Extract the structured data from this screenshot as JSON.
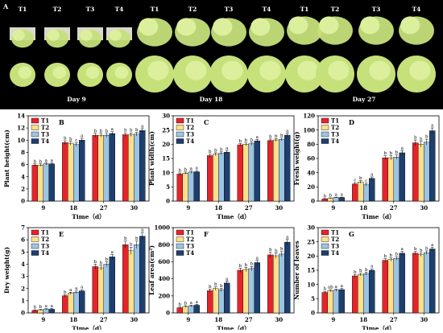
{
  "photo_panel": {
    "panel_letter": "A",
    "treatment_labels": [
      "T1",
      "T2",
      "T3",
      "T4"
    ],
    "day_labels": [
      "Day 9",
      "Day 18",
      "Day 27"
    ],
    "background_color": "#000000",
    "plant_color": "#c6e07a"
  },
  "colors": {
    "T1": "#e4242a",
    "T2": "#fde08c",
    "T3": "#9cc4e4",
    "T4": "#1e3f6e"
  },
  "chart_data": [
    {
      "type": "bar",
      "panel": "B",
      "categories": [
        "9",
        "18",
        "27",
        "30"
      ],
      "xlabel": "Time（d）",
      "ylabel": "Plant height(cm)",
      "ylim": [
        0,
        14
      ],
      "yticks": [
        0,
        2,
        4,
        6,
        8,
        10,
        12,
        14
      ],
      "legend": "top-left",
      "series": [
        {
          "name": "T1",
          "values": [
            5.9,
            9.6,
            10.8,
            10.9
          ],
          "err": [
            0.2,
            0.3,
            0.3,
            0.3
          ],
          "letters": [
            "b",
            "b",
            "b",
            "b"
          ]
        },
        {
          "name": "T2",
          "values": [
            5.9,
            9.5,
            10.8,
            10.9
          ],
          "err": [
            0.2,
            0.3,
            0.3,
            0.3
          ],
          "letters": [
            "b",
            "b",
            "b",
            "b"
          ]
        },
        {
          "name": "T3",
          "values": [
            6.1,
            9.3,
            10.8,
            11.0
          ],
          "err": [
            0.2,
            0.3,
            0.3,
            0.3
          ],
          "letters": [
            "a",
            "c",
            "b",
            "b"
          ]
        },
        {
          "name": "T4",
          "values": [
            6.1,
            10.0,
            11.1,
            11.6
          ],
          "err": [
            0.2,
            0.3,
            0.3,
            0.3
          ],
          "letters": [
            "a",
            "a",
            "a",
            "a"
          ]
        }
      ]
    },
    {
      "type": "bar",
      "panel": "C",
      "categories": [
        "9",
        "18",
        "27",
        "30"
      ],
      "xlabel": "Time（d）",
      "ylabel": "Plant width(cm)",
      "ylim": [
        0,
        30
      ],
      "yticks": [
        0,
        5,
        10,
        15,
        20,
        25,
        30
      ],
      "legend": "top-left",
      "series": [
        {
          "name": "T1",
          "values": [
            9.5,
            16.0,
            19.8,
            21.3
          ],
          "err": [
            0.4,
            0.5,
            0.5,
            0.5
          ],
          "letters": [
            "b",
            "b",
            "b",
            "b"
          ]
        },
        {
          "name": "T2",
          "values": [
            9.8,
            16.5,
            20.0,
            21.5
          ],
          "err": [
            0.4,
            0.5,
            0.5,
            0.5
          ],
          "letters": [
            "b",
            "b",
            "b",
            "b"
          ]
        },
        {
          "name": "T3",
          "values": [
            10.2,
            16.8,
            20.2,
            21.7
          ],
          "err": [
            0.4,
            0.5,
            0.5,
            0.5
          ],
          "letters": [
            "a",
            "b",
            "b",
            "b"
          ]
        },
        {
          "name": "T4",
          "values": [
            10.3,
            17.2,
            21.2,
            23.2
          ],
          "err": [
            0.4,
            0.5,
            0.5,
            0.6
          ],
          "letters": [
            "a",
            "a",
            "a",
            "a"
          ]
        }
      ]
    },
    {
      "type": "bar",
      "panel": "D",
      "categories": [
        "9",
        "18",
        "27",
        "30"
      ],
      "xlabel": "Time（d）",
      "ylabel": "Fresh weight(g)",
      "ylim": [
        0,
        120
      ],
      "yticks": [
        0,
        20,
        40,
        60,
        80,
        100,
        120
      ],
      "legend": "top-left",
      "series": [
        {
          "name": "T1",
          "values": [
            3,
            24,
            61,
            82
          ],
          "err": [
            0.5,
            2,
            3,
            4
          ],
          "letters": [
            "b",
            "c",
            "b",
            "b"
          ]
        },
        {
          "name": "T2",
          "values": [
            4,
            27,
            61,
            80
          ],
          "err": [
            0.5,
            2,
            3,
            4
          ],
          "letters": [
            "b",
            "b",
            "b",
            "b"
          ]
        },
        {
          "name": "T3",
          "values": [
            5,
            23,
            62,
            83
          ],
          "err": [
            0.5,
            2,
            3,
            4
          ],
          "letters": [
            "a",
            "c",
            "b",
            "b"
          ]
        },
        {
          "name": "T4",
          "values": [
            5,
            32,
            68,
            99
          ],
          "err": [
            0.5,
            2,
            3,
            4
          ],
          "letters": [
            "a",
            "a",
            "a",
            "a"
          ]
        }
      ]
    },
    {
      "type": "bar",
      "panel": "E",
      "categories": [
        "9",
        "18",
        "27",
        "30"
      ],
      "xlabel": "Time（d）",
      "ylabel": "Dry weight(g)",
      "ylim": [
        0,
        7
      ],
      "yticks": [
        0,
        1,
        2,
        3,
        4,
        5,
        6,
        7
      ],
      "legend": "top-left",
      "series": [
        {
          "name": "T1",
          "values": [
            0.2,
            1.4,
            3.8,
            5.6
          ],
          "err": [
            0.05,
            0.1,
            0.2,
            0.3
          ],
          "letters": [
            "b",
            "b",
            "b",
            "b"
          ]
        },
        {
          "name": "T2",
          "values": [
            0.25,
            1.6,
            3.7,
            5.1
          ],
          "err": [
            0.05,
            0.1,
            0.2,
            0.3
          ],
          "letters": [
            "b",
            "a",
            "b",
            "b"
          ]
        },
        {
          "name": "T3",
          "values": [
            0.3,
            1.7,
            4.0,
            5.6
          ],
          "err": [
            0.05,
            0.1,
            0.2,
            0.3
          ],
          "letters": [
            "a",
            "a",
            "b",
            "b"
          ]
        },
        {
          "name": "T4",
          "values": [
            0.3,
            1.8,
            4.6,
            6.3
          ],
          "err": [
            0.05,
            0.1,
            0.2,
            0.3
          ],
          "letters": [
            "a",
            "a",
            "a",
            "a"
          ]
        }
      ]
    },
    {
      "type": "bar",
      "panel": "F",
      "categories": [
        "9",
        "18",
        "27",
        "30"
      ],
      "xlabel": "Time（d）",
      "ylabel": "Leaf area(cm²)",
      "ylim": [
        0,
        1000
      ],
      "yticks": [
        0,
        200,
        400,
        600,
        800,
        1000
      ],
      "legend": "top-left",
      "series": [
        {
          "name": "T1",
          "values": [
            60,
            260,
            500,
            680
          ],
          "err": [
            10,
            20,
            25,
            30
          ],
          "letters": [
            "b",
            "b",
            "b",
            "b"
          ]
        },
        {
          "name": "T2",
          "values": [
            75,
            285,
            510,
            670
          ],
          "err": [
            10,
            20,
            25,
            30
          ],
          "letters": [
            "b",
            "b",
            "b",
            "b"
          ]
        },
        {
          "name": "T3",
          "values": [
            80,
            270,
            520,
            690
          ],
          "err": [
            10,
            20,
            25,
            30
          ],
          "letters": [
            "a",
            "b",
            "b",
            "b"
          ]
        },
        {
          "name": "T4",
          "values": [
            90,
            350,
            590,
            830
          ],
          "err": [
            10,
            20,
            25,
            30
          ],
          "letters": [
            "a",
            "a",
            "a",
            "a"
          ]
        }
      ]
    },
    {
      "type": "bar",
      "panel": "G",
      "categories": [
        "9",
        "18",
        "27",
        "30"
      ],
      "xlabel": "Time（d）",
      "ylabel": "Number of leaves",
      "ylim": [
        0,
        30
      ],
      "yticks": [
        0,
        5,
        10,
        15,
        20,
        25,
        30
      ],
      "legend": "top-left",
      "series": [
        {
          "name": "T1",
          "values": [
            7.2,
            13.0,
            18.5,
            21.0
          ],
          "err": [
            0.4,
            0.5,
            0.6,
            0.6
          ],
          "letters": [
            "b",
            "b",
            "b",
            "b"
          ]
        },
        {
          "name": "T2",
          "values": [
            7.8,
            13.5,
            18.8,
            20.5
          ],
          "err": [
            0.4,
            0.5,
            0.6,
            0.6
          ],
          "letters": [
            "ab",
            "b",
            "b",
            "b"
          ]
        },
        {
          "name": "T3",
          "values": [
            8.0,
            13.8,
            19.2,
            21.2
          ],
          "err": [
            0.4,
            0.5,
            0.6,
            0.6
          ],
          "letters": [
            "a",
            "b",
            "b",
            "b"
          ]
        },
        {
          "name": "T4",
          "values": [
            8.2,
            15.0,
            21.0,
            22.5
          ],
          "err": [
            0.4,
            0.5,
            0.6,
            0.6
          ],
          "letters": [
            "a",
            "a",
            "a",
            "a"
          ]
        }
      ]
    }
  ]
}
